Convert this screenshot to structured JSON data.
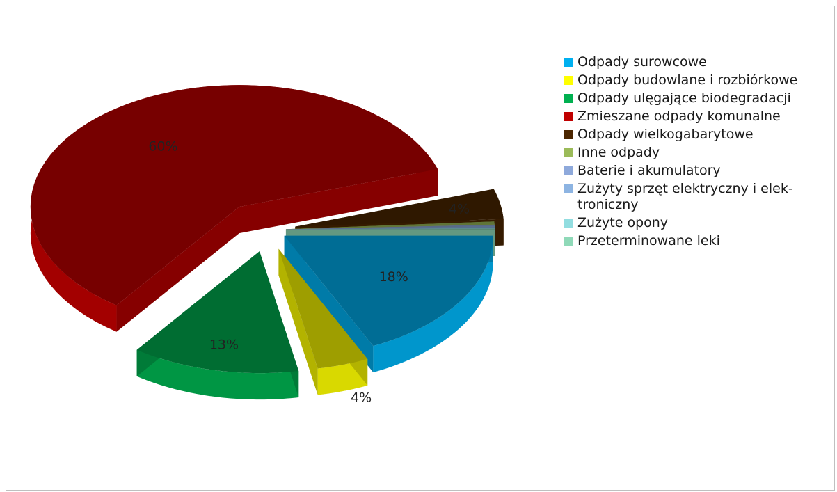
{
  "chart_data": {
    "type": "pie",
    "style": "3d-exploded",
    "legend_position": "right",
    "slices": [
      {
        "label": "Odpady surowcowe",
        "value": 18,
        "value_label": "18%",
        "color": "#00b0f0"
      },
      {
        "label": "Odpady budowlane i rozbiórkowe",
        "value": 4,
        "value_label": "4%",
        "color": "#ffff00"
      },
      {
        "label": "Odpady ulęgające biodegradacji",
        "value": 13,
        "value_label": "13%",
        "color": "#00b050"
      },
      {
        "label": "Zmieszane odpady komunalne",
        "value": 60,
        "value_label": "60%",
        "color": "#c00000"
      },
      {
        "label": "Odpady wielkogabarytowe",
        "value": 4,
        "value_label": "4%",
        "color": "#4b2600"
      },
      {
        "label": "Inne odpady",
        "value": 0.4,
        "value_label": "",
        "color": "#9bbb59"
      },
      {
        "label": "Baterie i akumulatory",
        "value": 0.2,
        "value_label": "",
        "color": "#8ea9db"
      },
      {
        "label": "Zużyty sprzęt elektryczny i elek-troniczny",
        "value": 0.2,
        "value_label": "",
        "color": "#8db4e2"
      },
      {
        "label": "Zużyte opony",
        "value": 0.1,
        "value_label": "",
        "color": "#92dde0"
      },
      {
        "label": "Przeterminowane leki",
        "value": 0.1,
        "value_label": "",
        "color": "#8fd9b8"
      }
    ]
  }
}
